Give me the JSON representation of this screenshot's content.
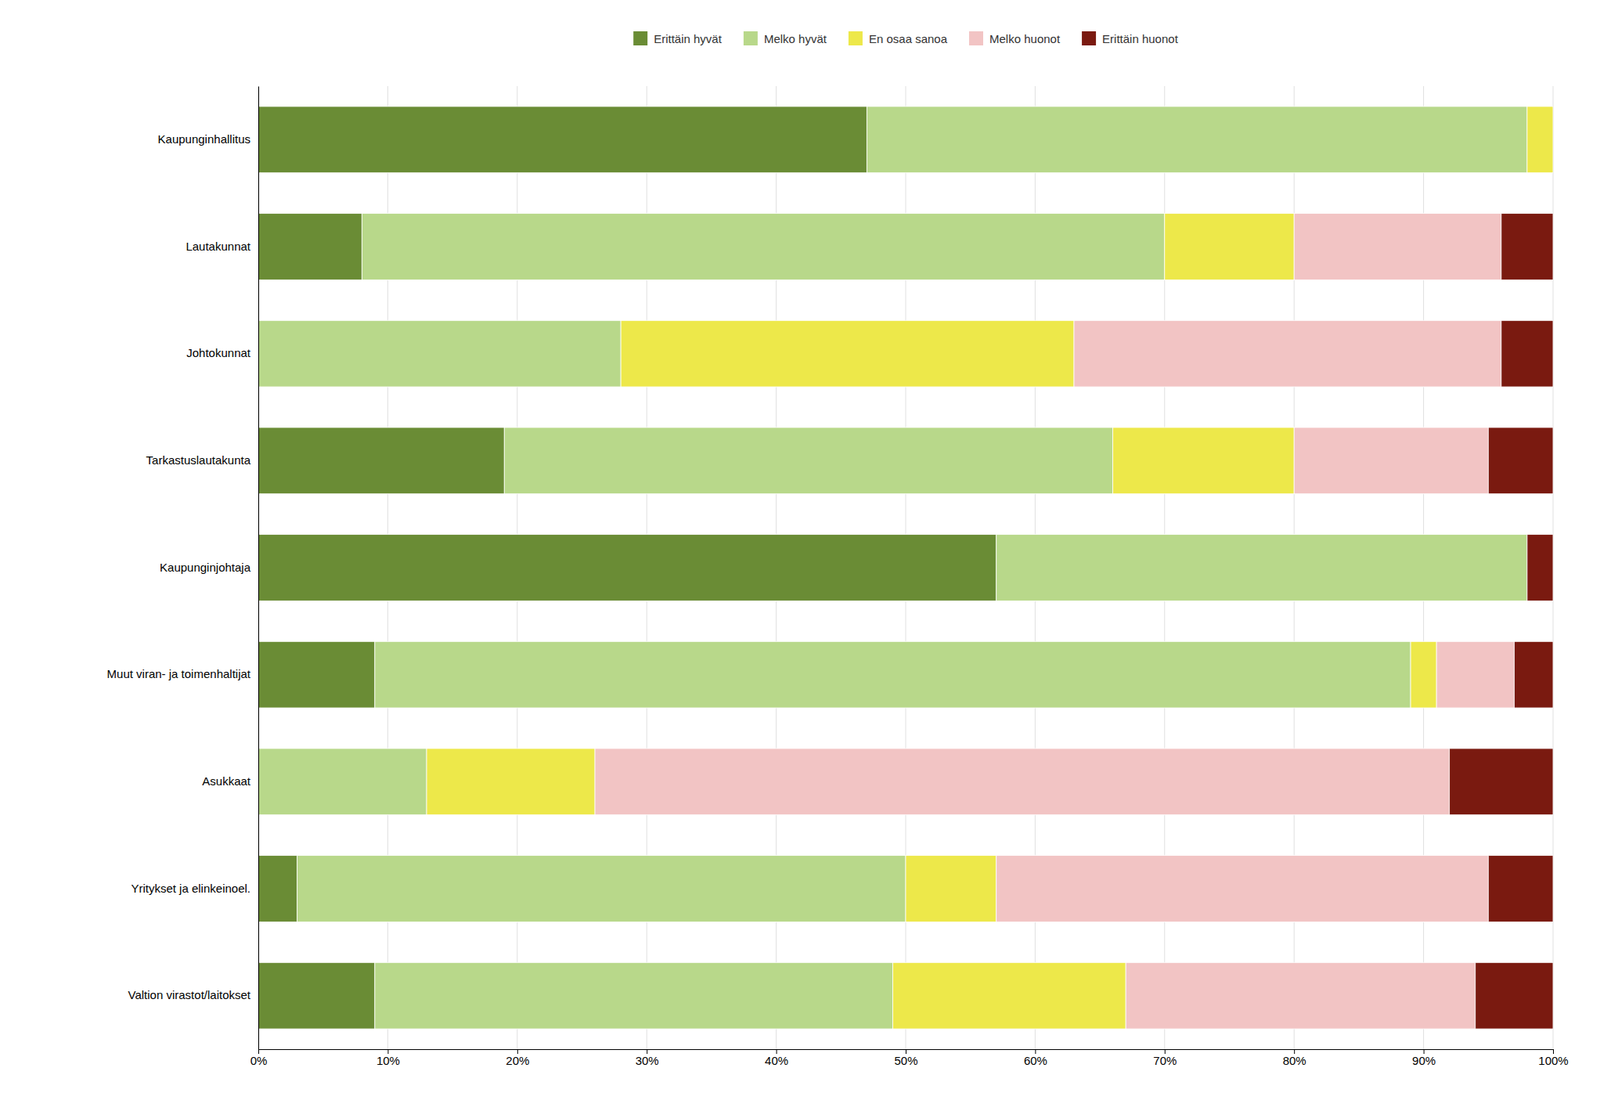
{
  "chart_data": {
    "type": "bar",
    "orientation": "horizontal",
    "stacked": true,
    "categories": [
      "Kaupunginhallitus",
      "Lautakunnat",
      "Johtokunnat",
      "Tarkastuslautakunta",
      "Kaupunginjohtaja",
      "Muut viran- ja toimenhaltijat",
      "Asukkaat",
      "Yritykset ja elinkeinoel.",
      "Valtion virastot/laitokset"
    ],
    "series": [
      {
        "name": "Erittäin hyvät",
        "color": "#6a8c35",
        "values": [
          47,
          8,
          0,
          19,
          57,
          9,
          0,
          3,
          9
        ]
      },
      {
        "name": "Melko hyvät",
        "color": "#b8d88a",
        "values": [
          51,
          62,
          28,
          47,
          41,
          80,
          13,
          47,
          40
        ]
      },
      {
        "name": "En osaa sanoa",
        "color": "#ede84a",
        "values": [
          2,
          10,
          35,
          14,
          0,
          2,
          13,
          7,
          18
        ]
      },
      {
        "name": "Melko huonot",
        "color": "#f2c4c4",
        "values": [
          0,
          16,
          33,
          15,
          0,
          6,
          66,
          38,
          27
        ]
      },
      {
        "name": "Erittäin huonot",
        "color": "#7a1a10",
        "values": [
          0,
          4,
          4,
          5,
          2,
          3,
          8,
          5,
          6
        ]
      }
    ],
    "xlim": [
      0,
      100
    ],
    "xticks": [
      {
        "value": 0,
        "label": "0%"
      },
      {
        "value": 10,
        "label": "10%"
      },
      {
        "value": 20,
        "label": "20%"
      },
      {
        "value": 30,
        "label": "30%"
      },
      {
        "value": 40,
        "label": "40%"
      },
      {
        "value": 50,
        "label": "50%"
      },
      {
        "value": 60,
        "label": "60%"
      },
      {
        "value": 70,
        "label": "70%"
      },
      {
        "value": 80,
        "label": "80%"
      },
      {
        "value": 90,
        "label": "90%"
      },
      {
        "value": 100,
        "label": "100%"
      }
    ],
    "grid": true,
    "legend": "top"
  }
}
